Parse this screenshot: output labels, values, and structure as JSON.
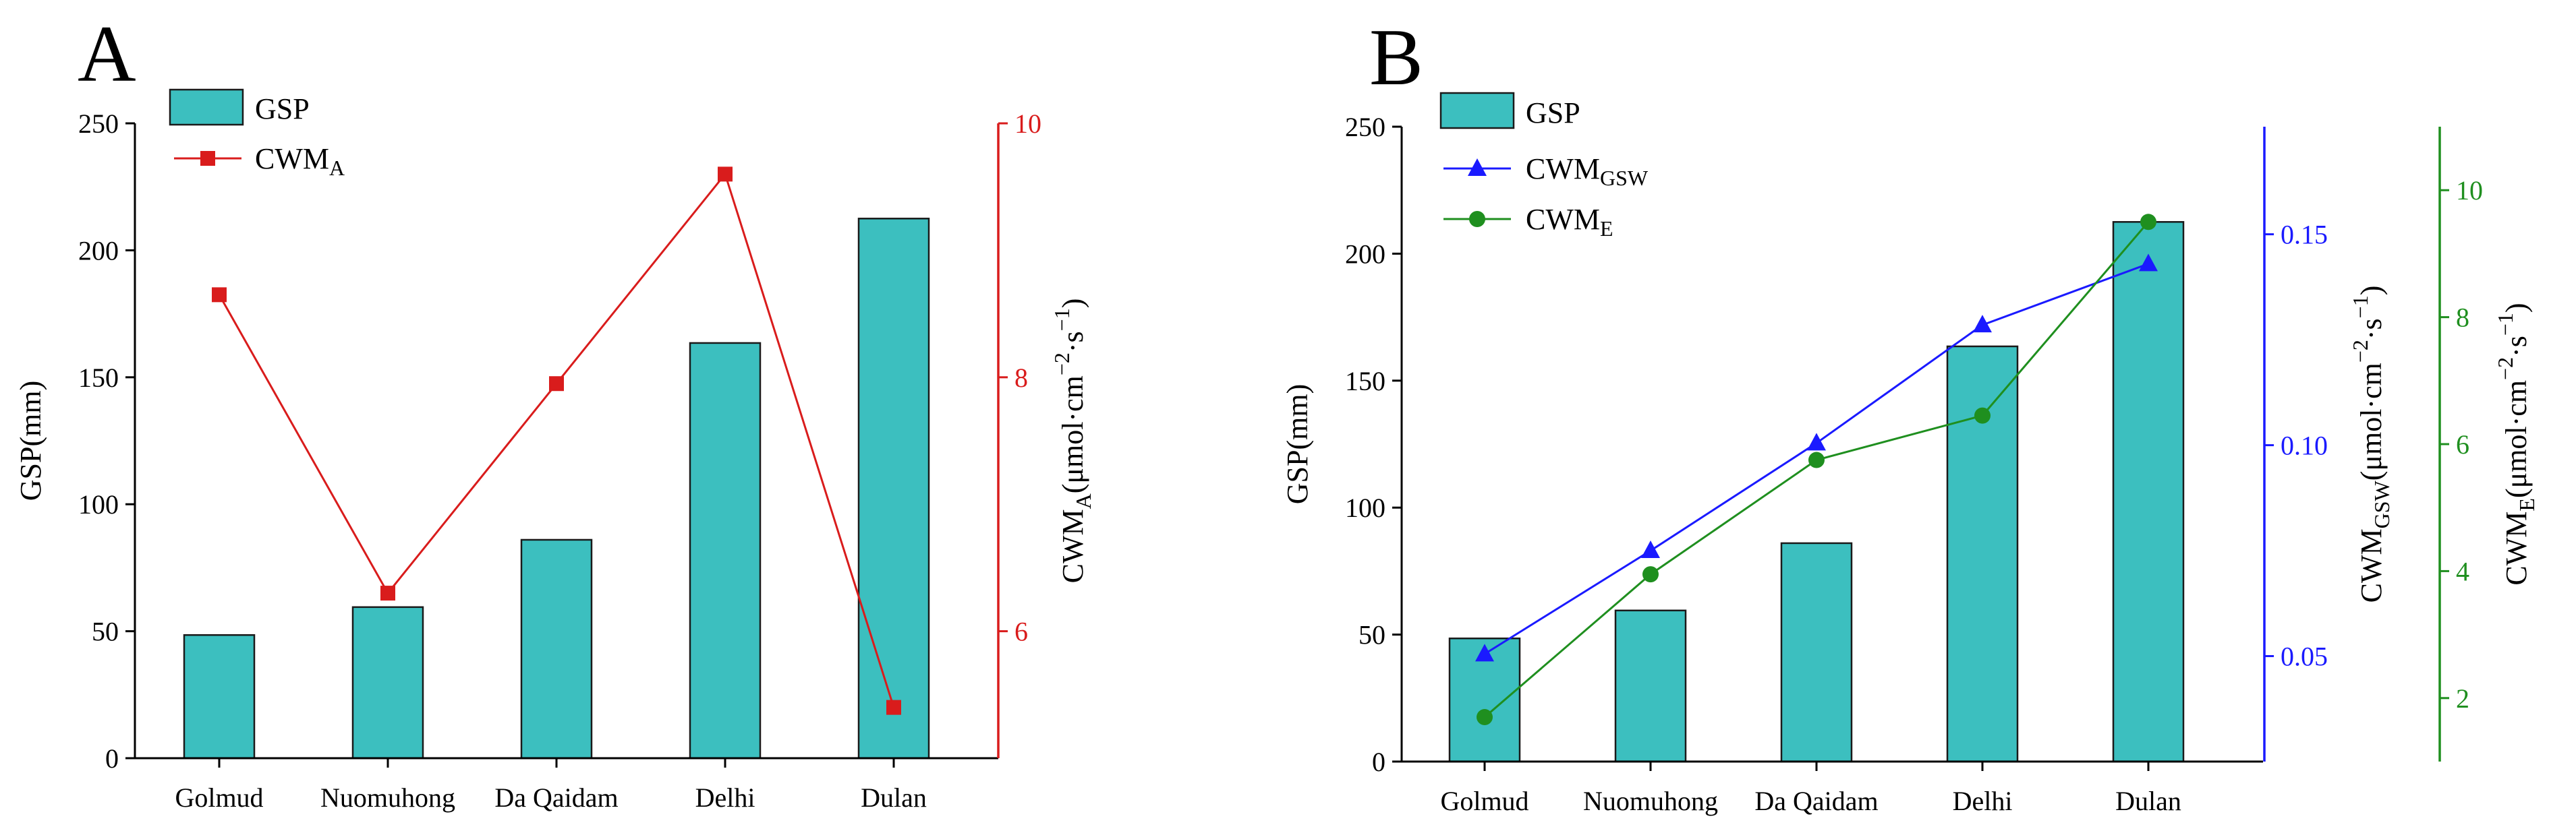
{
  "chart_data": [
    {
      "panel": "A",
      "type": "bar",
      "categories": [
        "Golmud",
        "Nuomuhong",
        "Da Qaidam",
        "Delhi",
        "Dulan"
      ],
      "series": [
        {
          "name": "GSP",
          "kind": "bar",
          "axis": "left",
          "values": [
            48.5,
            59.5,
            86,
            163.5,
            212.5
          ],
          "color": "#3cbfbf"
        },
        {
          "name": "CWM",
          "sub": "A",
          "kind": "line",
          "marker": "square",
          "axis": "right",
          "values": [
            8.65,
            6.3,
            7.95,
            9.6,
            5.4
          ],
          "color": "#d91c1c"
        }
      ],
      "left_axis": {
        "label": "GSP(mm)",
        "ylim": [
          0,
          250
        ],
        "ticks": [
          0,
          50,
          100,
          150,
          200,
          250
        ],
        "color": "#000000"
      },
      "right_axis": {
        "label_main": "CWM",
        "label_sub": "A",
        "label_tail": "(μmol·cm",
        "label_exp1": "−2",
        "label_mid": "·s",
        "label_exp2": "−1",
        "label_close": ")",
        "ylim": [
          5,
          10
        ],
        "ticks": [
          6,
          8,
          10
        ],
        "color": "#d91c1c"
      },
      "legend": "top-left"
    },
    {
      "panel": "B",
      "type": "bar",
      "categories": [
        "Golmud",
        "Nuomuhong",
        "Da Qaidam",
        "Delhi",
        "Dulan"
      ],
      "series": [
        {
          "name": "GSP",
          "kind": "bar",
          "axis": "left",
          "values": [
            48.5,
            59.5,
            86,
            163.5,
            212.5
          ],
          "color": "#3cbfbf"
        },
        {
          "name": "CWM",
          "sub": "GSW",
          "kind": "line",
          "marker": "triangle",
          "axis": "right1",
          "values": [
            0.0505,
            0.075,
            0.1005,
            0.1285,
            0.143
          ],
          "color": "#1a1aff"
        },
        {
          "name": "CWM",
          "sub": "E",
          "kind": "line",
          "marker": "circle",
          "axis": "right2",
          "values": [
            1.7,
            3.95,
            5.75,
            6.45,
            9.5
          ],
          "color": "#1f8f1f"
        }
      ],
      "left_axis": {
        "label": "GSP(mm)",
        "ylim": [
          0,
          250
        ],
        "ticks": [
          0,
          50,
          100,
          150,
          200,
          250
        ],
        "color": "#000000"
      },
      "right_axis_1": {
        "label_main": "CWM",
        "label_sub": "GSW",
        "label_tail": "(μmol·cm",
        "label_exp1": "−2",
        "label_mid": "·s",
        "label_exp2": "−1",
        "label_close": ")",
        "ylim": [
          0.025,
          0.1755
        ],
        "ticks": [
          0.05,
          0.1,
          0.15
        ],
        "tick_labels": [
          "0.05",
          "0.10",
          "0.15"
        ],
        "color": "#1a1aff"
      },
      "right_axis_2": {
        "label_main": "CWM",
        "label_sub": "E",
        "label_tail": "(μmol·cm",
        "label_exp1": "−2",
        "label_mid": "·s",
        "label_exp2": "−1",
        "label_close": ")",
        "ylim": [
          1,
          11
        ],
        "ticks": [
          2,
          4,
          6,
          8,
          10
        ],
        "color": "#1f8f1f"
      },
      "legend": "top-left"
    }
  ]
}
